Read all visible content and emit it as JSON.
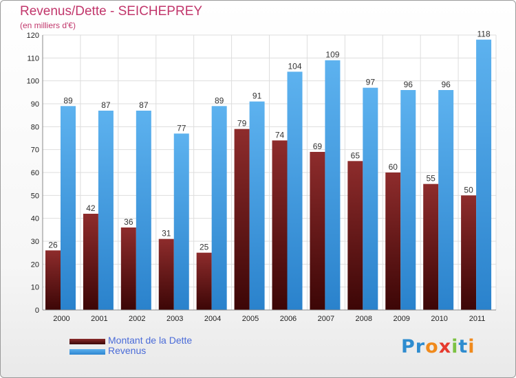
{
  "chart_data": {
    "type": "bar",
    "title": "Revenus/Dette - SEICHEPREY",
    "subtitle": "(en milliers d'€)",
    "categories": [
      "2000",
      "2001",
      "2002",
      "2003",
      "2004",
      "2005",
      "2006",
      "2007",
      "2008",
      "2009",
      "2010",
      "2011"
    ],
    "series": [
      {
        "name": "Montant de la Dette",
        "color": "#7a1f1f",
        "values": [
          26,
          42,
          36,
          31,
          25,
          79,
          74,
          69,
          65,
          60,
          55,
          50
        ]
      },
      {
        "name": "Revenus",
        "color": "#4aa3e8",
        "values": [
          89,
          87,
          87,
          77,
          89,
          91,
          104,
          109,
          97,
          96,
          96,
          118
        ]
      }
    ],
    "ylim": [
      0,
      120
    ],
    "yticks": [
      0,
      10,
      20,
      30,
      40,
      50,
      60,
      70,
      80,
      90,
      100,
      110,
      120
    ],
    "grid": true,
    "legend_position": "bottom-left"
  },
  "logo": {
    "letters": [
      {
        "char": "P",
        "color": "#2e8ccf"
      },
      {
        "char": "r",
        "color": "#2e8ccf"
      },
      {
        "char": "o",
        "color": "#f08a1c"
      },
      {
        "char": "x",
        "color": "#e63a2e"
      },
      {
        "char": "i",
        "color": "#7cc243"
      },
      {
        "char": "t",
        "color": "#2e8ccf"
      },
      {
        "char": "i",
        "color": "#f08a1c"
      }
    ]
  }
}
